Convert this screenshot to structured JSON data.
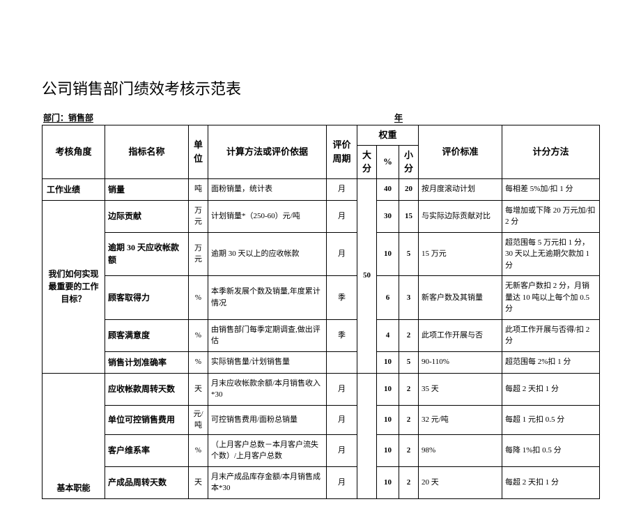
{
  "title": "公司销售部门绩效考核示范表",
  "meta": {
    "left": "部门：销售部",
    "right": "年"
  },
  "header": {
    "angle": "考核角度",
    "name": "指标名称",
    "unit": "单位",
    "calc": "计算方法或评价依据",
    "period": "评价周期",
    "weight": "权重",
    "big": "大分",
    "pct": "%",
    "small": "小分",
    "std": "评价标准",
    "method": "计分方法"
  },
  "groups": [
    {
      "angle_head": "工作业绩",
      "angle_body": "我们如何实现最重要的工作目标？",
      "big": "50",
      "rows": [
        {
          "name": "销量",
          "unit": "吨",
          "calc": "面粉销量，统计表",
          "period": "月",
          "pct": "40",
          "small": "20",
          "std": "按月度滚动计划",
          "method": "每相差 5%加/扣 1 分"
        },
        {
          "name": "边际贡献",
          "unit": "万元",
          "calc": "计划销量*（250-60）元/吨",
          "period": "月",
          "pct": "30",
          "small": "15",
          "std": "与实际边际贡献对比",
          "method": "每增加或下降 20 万元加/扣 2 分"
        },
        {
          "name": "逾期 30 天应收帐款额",
          "unit": "万元",
          "calc": "逾期 30 天以上的应收帐款",
          "period": "月",
          "pct": "10",
          "small": "5",
          "std": "15 万元",
          "method": "超范围每 5 万元扣 1 分，30 天以上无逾期欠款加 1 分"
        },
        {
          "name": "顾客取得力",
          "unit": "%",
          "calc": "本季新发展个数及销量,年度累计情况",
          "period": "季",
          "pct": "6",
          "small": "3",
          "std": "新客户数及其销量",
          "method": "无新客户数扣 2 分，月销量达 10 吨以上每个加 0.5 分"
        },
        {
          "name": "顾客满意度",
          "unit": "%",
          "calc": "由销售部门每季定期调查,做出评估",
          "period": "季",
          "pct": "4",
          "small": "2",
          "std": "此项工作开展与否",
          "method": "此项工作开展与否得/扣 2 分"
        },
        {
          "name": "销售计划准确率",
          "unit": "%",
          "calc": "实际销售量/计划销售量",
          "period": "",
          "pct": "10",
          "small": "5",
          "std": "90-110%",
          "method": "超范围每 2%扣 1 分"
        }
      ]
    },
    {
      "angle_head": "",
      "angle_body": "基本职能",
      "big": "",
      "rows": [
        {
          "name": "应收帐款周转天数",
          "unit": "天",
          "calc": "月末应收帐款余额/本月销售收入*30",
          "period": "月",
          "pct": "10",
          "small": "2",
          "std": "35 天",
          "method": "每超 2 天扣 1 分"
        },
        {
          "name": "单位可控销售费用",
          "unit": "元/吨",
          "calc": "可控销售费用/面粉总销量",
          "period": "月",
          "pct": "10",
          "small": "2",
          "std": "32 元/吨",
          "method": "每超 1 元扣 0.5 分"
        },
        {
          "name": "客户维系率",
          "unit": "%",
          "calc": "（上月客户总数－本月客户流失个数）/上月客户总数",
          "period": "月",
          "pct": "10",
          "small": "2",
          "std": "98%",
          "method": "每降 1%扣 0.5 分"
        },
        {
          "name": "产成品周转天数",
          "unit": "天",
          "calc": "月末产成品库存金额/本月销售成本*30",
          "period": "月",
          "pct": "10",
          "small": "2",
          "std": "20 天",
          "method": "每超 2 天扣 1 分"
        }
      ]
    }
  ]
}
